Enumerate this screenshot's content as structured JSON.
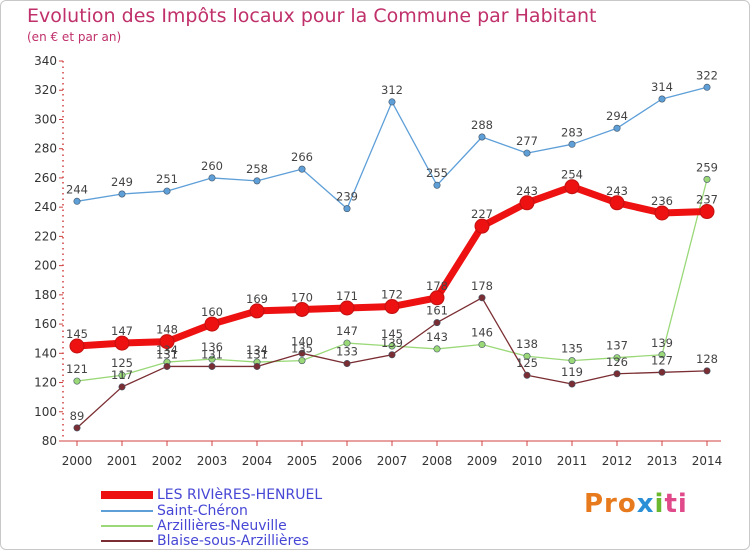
{
  "title": "Evolution des Impôts locaux pour la Commune par Habitant",
  "subtitle": "(en € et par an)",
  "logo": {
    "p1": "Pro",
    "p2": "x",
    "p3": "i",
    "p4": "ti",
    "colors": [
      "#e87a1e",
      "#2a8fd6",
      "#6ab82e",
      "#e04a8a"
    ]
  },
  "chart_data": {
    "type": "line",
    "title": "Evolution des Impôts locaux pour la Commune par Habitant",
    "subtitle": "(en € et par an)",
    "xlabel": "",
    "ylabel": "",
    "x": [
      "2000",
      "2001",
      "2002",
      "2003",
      "2004",
      "2005",
      "2006",
      "2007",
      "2008",
      "2009",
      "2010",
      "2011",
      "2012",
      "2013",
      "2014"
    ],
    "ylim": [
      80,
      340
    ],
    "yticks": [
      80,
      100,
      120,
      140,
      160,
      180,
      200,
      220,
      240,
      260,
      280,
      300,
      320,
      340
    ],
    "series": [
      {
        "name": "LES RIVIèRES-HENRUEL",
        "color": "#ee1111",
        "values": [
          145,
          147,
          148,
          160,
          169,
          170,
          171,
          172,
          178,
          227,
          243,
          254,
          243,
          236,
          237
        ]
      },
      {
        "name": "Saint-Chéron",
        "color": "#5e9fd8",
        "values": [
          244,
          249,
          251,
          260,
          258,
          266,
          239,
          312,
          255,
          288,
          277,
          283,
          294,
          314,
          322
        ]
      },
      {
        "name": "Arzillières-Neuville",
        "color": "#9ad878",
        "values": [
          121,
          125,
          134,
          136,
          134,
          135,
          147,
          145,
          143,
          146,
          138,
          135,
          137,
          139,
          259
        ]
      },
      {
        "name": "Blaise-sous-Arzillières",
        "color": "#7a2d32",
        "values": [
          89,
          117,
          131,
          131,
          131,
          140,
          133,
          139,
          161,
          178,
          125,
          119,
          126,
          127,
          128
        ]
      }
    ]
  }
}
